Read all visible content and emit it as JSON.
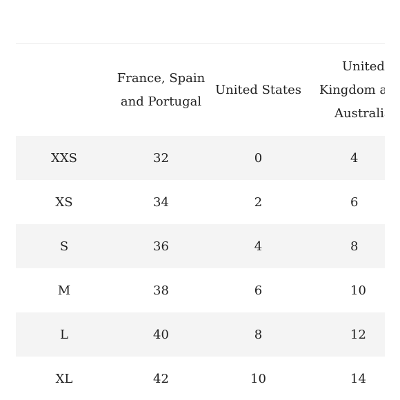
{
  "size_chart": {
    "headers": {
      "size": "",
      "france_spain_portugal_line1": "France, Spain",
      "france_spain_portugal_line2": "and Portugal",
      "united_states": "United States",
      "uk_australia_line1": "United",
      "uk_australia_line2": "Kingdom and",
      "uk_australia_line3": "Australia"
    },
    "rows": [
      {
        "size": "XXS",
        "fr_es_pt": "32",
        "us": "0",
        "uk_au": "4"
      },
      {
        "size": "XS",
        "fr_es_pt": "34",
        "us": "2",
        "uk_au": "6"
      },
      {
        "size": "S",
        "fr_es_pt": "36",
        "us": "4",
        "uk_au": "8"
      },
      {
        "size": "M",
        "fr_es_pt": "38",
        "us": "6",
        "uk_au": "10"
      },
      {
        "size": "L",
        "fr_es_pt": "40",
        "us": "8",
        "uk_au": "12"
      },
      {
        "size": "XL",
        "fr_es_pt": "42",
        "us": "10",
        "uk_au": "14"
      }
    ]
  },
  "colors": {
    "row_shade": "#f4f4f4",
    "text": "#222222",
    "rule": "#ececec"
  }
}
